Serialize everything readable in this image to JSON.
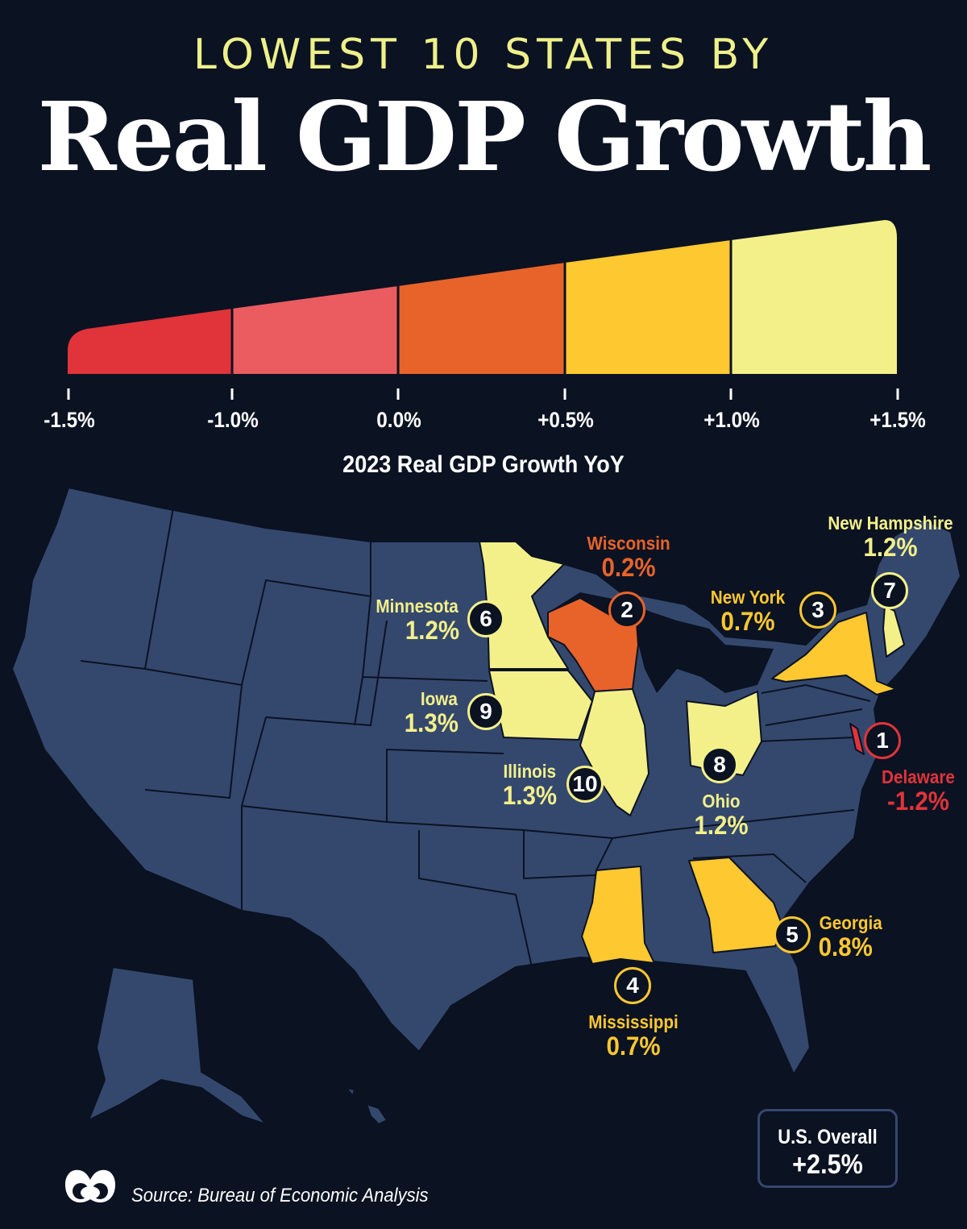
{
  "header": {
    "kicker": "LOWEST 10 STATES BY",
    "title": "Real GDP Growth"
  },
  "legend": {
    "title": "2023 Real GDP Growth YoY",
    "ticks": [
      "-1.5%",
      "-1.0%",
      "0.0%",
      "+0.5%",
      "+1.0%",
      "+1.5%"
    ],
    "colors": [
      "#e0343a",
      "#eb5c60",
      "#e8632a",
      "#fdc830",
      "#f3f08a"
    ]
  },
  "map_fill": "#34486e",
  "states": [
    {
      "rank": "1",
      "name": "Delaware",
      "value": "-1.2%",
      "color": "#e0343a"
    },
    {
      "rank": "2",
      "name": "Wisconsin",
      "value": "0.2%",
      "color": "#e8632a"
    },
    {
      "rank": "3",
      "name": "New York",
      "value": "0.7%",
      "color": "#fdc830"
    },
    {
      "rank": "4",
      "name": "Mississippi",
      "value": "0.7%",
      "color": "#fdc830"
    },
    {
      "rank": "5",
      "name": "Georgia",
      "value": "0.8%",
      "color": "#fdc830"
    },
    {
      "rank": "6",
      "name": "Minnesota",
      "value": "1.2%",
      "color": "#f3f08a"
    },
    {
      "rank": "7",
      "name": "New Hampshire",
      "value": "1.2%",
      "color": "#f3f08a"
    },
    {
      "rank": "8",
      "name": "Ohio",
      "value": "1.2%",
      "color": "#f3f08a"
    },
    {
      "rank": "9",
      "name": "Iowa",
      "value": "1.3%",
      "color": "#f3f08a"
    },
    {
      "rank": "10",
      "name": "Illinois",
      "value": "1.3%",
      "color": "#f3f08a"
    }
  ],
  "overall": {
    "label": "U.S. Overall",
    "value": "+2.5%"
  },
  "source": "Source: Bureau of Economic Analysis"
}
